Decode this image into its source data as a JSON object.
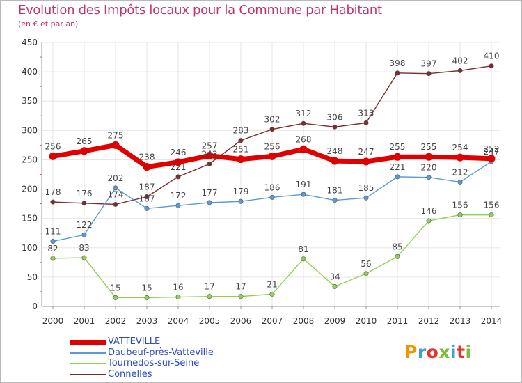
{
  "header": {
    "title": "Evolution des Impôts locaux pour la Commune par Habitant",
    "subtitle": "(en € et par an)"
  },
  "logo": {
    "text": "Proxiti",
    "colors": [
      "#f29400",
      "#3aa0db",
      "#e5332a",
      "#7bbe3a",
      "#3aa0db",
      "#e5332a",
      "#7bbe3a"
    ]
  },
  "chart_data": {
    "type": "line",
    "title": "Evolution des Impôts locaux pour la Commune par Habitant",
    "ylabel": "(en € et par an)",
    "xlabel": "",
    "ylim": [
      0,
      450
    ],
    "yticks": [
      0,
      50,
      100,
      150,
      200,
      250,
      300,
      350,
      400,
      450
    ],
    "grid": true,
    "legend_position": "bottom-left",
    "categories": [
      "2000",
      "2001",
      "2002",
      "2003",
      "2004",
      "2005",
      "2006",
      "2007",
      "2008",
      "2009",
      "2010",
      "2011",
      "2012",
      "2013",
      "2014"
    ],
    "series": [
      {
        "name": "VATTEVILLE",
        "color": "#e00000",
        "values": [
          256,
          265,
          275,
          238,
          246,
          257,
          251,
          256,
          268,
          248,
          247,
          255,
          255,
          254,
          252
        ]
      },
      {
        "name": "Daubeuf-près-Vatteville",
        "color": "#5b9bd5",
        "values": [
          111,
          122,
          202,
          167,
          172,
          177,
          179,
          186,
          191,
          181,
          185,
          221,
          220,
          212,
          247
        ]
      },
      {
        "name": "Tournedos-sur-Seine",
        "color": "#92d050",
        "values": [
          82,
          83,
          15,
          15,
          16,
          17,
          17,
          21,
          81,
          34,
          56,
          85,
          146,
          156,
          156
        ]
      },
      {
        "name": "Connelles",
        "color": "#7b2c2c",
        "values": [
          178,
          176,
          174,
          187,
          221,
          243,
          283,
          302,
          312,
          306,
          313,
          398,
          397,
          402,
          410
        ]
      }
    ],
    "point_labels": [
      [
        "256",
        "265",
        "275",
        "238",
        "246",
        "257",
        "251",
        "256",
        "268",
        "248",
        "247",
        "255",
        "255",
        "254",
        "252"
      ],
      [
        "111",
        "122",
        "202",
        "167",
        "172",
        "177",
        "179",
        "186",
        "191",
        "181",
        "185",
        "221",
        "220",
        "212",
        "247"
      ],
      [
        "82",
        "83",
        "15",
        "15",
        "16",
        "17",
        "17",
        "21",
        "81",
        "34",
        "56",
        "85",
        "146",
        "156",
        "156"
      ],
      [
        "178",
        "176",
        "174",
        "187",
        "221",
        "243",
        "283",
        "302",
        "312",
        "306",
        "313",
        "398",
        "397",
        "402",
        "410"
      ]
    ]
  }
}
